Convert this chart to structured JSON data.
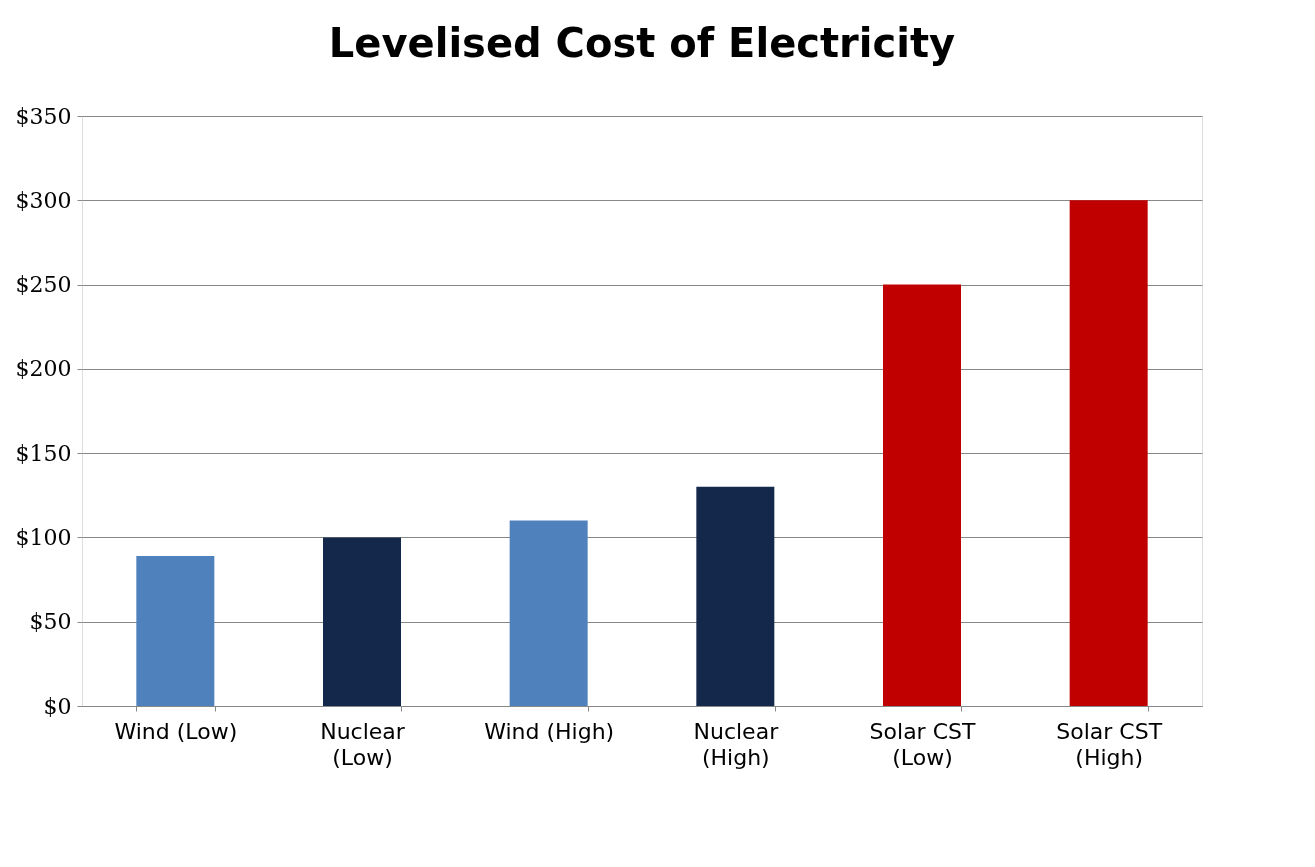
{
  "chart_data": {
    "type": "bar",
    "title": "Levelised Cost of Electricity",
    "categories": [
      "Wind (Low)",
      "Nuclear (Low)",
      "Wind (High)",
      "Nuclear (High)",
      "Solar CST (Low)",
      "Solar CST (High)"
    ],
    "values": [
      89,
      100,
      110,
      130,
      250,
      300
    ],
    "colors": [
      "#4f81bd",
      "#13284a",
      "#4f81bd",
      "#13284a",
      "#c00000",
      "#c00000"
    ],
    "ylim": [
      0,
      350
    ],
    "yticks": [
      {
        "value": 0,
        "label": "$0"
      },
      {
        "value": 50,
        "label": "$50"
      },
      {
        "value": 100,
        "label": "$100"
      },
      {
        "value": 150,
        "label": "$150"
      },
      {
        "value": 200,
        "label": "$200"
      },
      {
        "value": 250,
        "label": "$250"
      },
      {
        "value": 300,
        "label": "$300"
      },
      {
        "value": 350,
        "label": "$350"
      }
    ],
    "grid": "y"
  }
}
